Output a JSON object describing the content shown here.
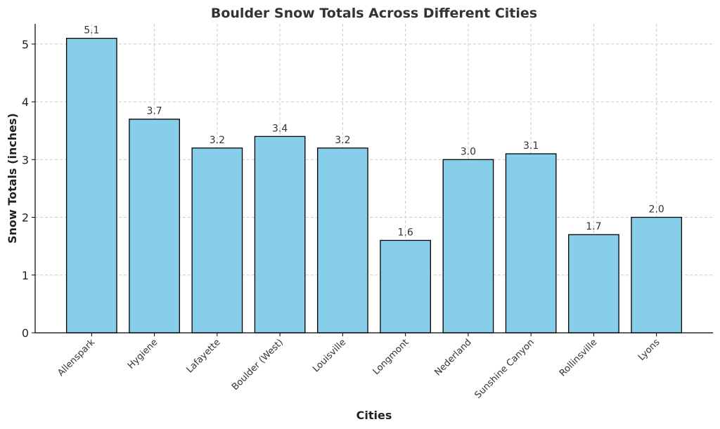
{
  "chart_data": {
    "type": "bar",
    "title": "Boulder Snow Totals Across Different Cities",
    "xlabel": "Cities",
    "ylabel": "Snow Totals (inches)",
    "categories": [
      "Allenspark",
      "Hygiene",
      "Lafayette",
      "Boulder (West)",
      "Louisville",
      "Longmont",
      "Nederland",
      "Sunshine Canyon",
      "Rollinsville",
      "Lyons"
    ],
    "values": [
      5.1,
      3.7,
      3.2,
      3.4,
      3.2,
      1.6,
      3.0,
      3.1,
      1.7,
      2.0
    ],
    "data_labels": [
      "5.1",
      "3.7",
      "3.2",
      "3.4",
      "3.2",
      "1.6",
      "3.0",
      "3.1",
      "1.7",
      "2.0"
    ],
    "ylim": [
      0,
      5.35
    ],
    "yticks": [
      0,
      1,
      2,
      3,
      4,
      5
    ],
    "grid": true,
    "bar_color": "#87CEEB",
    "edge_color": "#000000"
  }
}
